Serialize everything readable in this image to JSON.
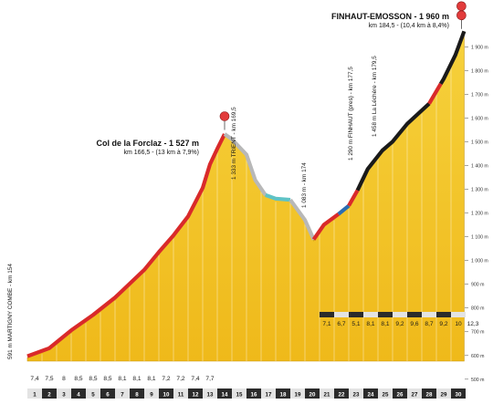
{
  "chart_data": {
    "type": "area",
    "profile": [
      [
        0,
        591
      ],
      [
        1.5,
        625
      ],
      [
        3,
        700
      ],
      [
        4.5,
        765
      ],
      [
        6,
        838
      ],
      [
        8,
        955
      ],
      [
        9,
        1030
      ],
      [
        10,
        1100
      ],
      [
        11,
        1180
      ],
      [
        12,
        1300
      ],
      [
        12.5,
        1400
      ],
      [
        13,
        1465
      ],
      [
        13.5,
        1527
      ],
      [
        14,
        1505
      ],
      [
        15,
        1440
      ],
      [
        15.6,
        1333
      ],
      [
        16.3,
        1270
      ],
      [
        17,
        1255
      ],
      [
        18,
        1250
      ],
      [
        19,
        1165
      ],
      [
        19.6,
        1083
      ],
      [
        20.3,
        1145
      ],
      [
        21.3,
        1190
      ],
      [
        22,
        1225
      ],
      [
        22.6,
        1290
      ],
      [
        23.3,
        1380
      ],
      [
        24.3,
        1458
      ],
      [
        25,
        1495
      ],
      [
        26,
        1570
      ],
      [
        27.5,
        1655
      ],
      [
        28.5,
        1760
      ],
      [
        29.3,
        1860
      ],
      [
        29.9,
        1960
      ]
    ],
    "road_segments": [
      {
        "from": 0,
        "to": 13.5,
        "color": "#d92a2a"
      },
      {
        "from": 13.5,
        "to": 16.3,
        "color": "#b8b8b8"
      },
      {
        "from": 16.3,
        "to": 18,
        "color": "#5fc3c6"
      },
      {
        "from": 18,
        "to": 19.6,
        "color": "#b8b8b8"
      },
      {
        "from": 19.6,
        "to": 21.3,
        "color": "#d92a2a"
      },
      {
        "from": 21.3,
        "to": 22,
        "color": "#2a6db3"
      },
      {
        "from": 22,
        "to": 22.6,
        "color": "#d92a2a"
      },
      {
        "from": 22.6,
        "to": 27.5,
        "color": "#1a1a1a"
      },
      {
        "from": 27.5,
        "to": 28.3,
        "color": "#d92a2a"
      },
      {
        "from": 28.3,
        "to": 29.9,
        "color": "#1a1a1a"
      }
    ],
    "y_ticks": [
      "500 m",
      "600 m",
      "700 m",
      "800 m",
      "900 m",
      "1 000 m",
      "1 100 m",
      "1 200 m",
      "1 300 m",
      "1 400 m",
      "1 500 m",
      "1 600 m",
      "1 700 m",
      "1 800 m",
      "1 900 m"
    ],
    "y_tick_values": [
      500,
      600,
      700,
      800,
      900,
      1000,
      1100,
      1200,
      1300,
      1400,
      1500,
      1600,
      1700,
      1800,
      1900
    ],
    "km_labels": [
      "1",
      "2",
      "3",
      "4",
      "5",
      "6",
      "7",
      "8",
      "9",
      "10",
      "11",
      "12",
      "13",
      "14",
      "15",
      "16",
      "17",
      "18",
      "19",
      "20",
      "21",
      "22",
      "23",
      "24",
      "25",
      "26",
      "27",
      "28",
      "29",
      "30"
    ],
    "gradients_first": [
      "7,4",
      "7,5",
      "8",
      "8,5",
      "8,5",
      "8,5",
      "8,1",
      "8,1",
      "8,1",
      "7,2",
      "7,2",
      "7,4",
      "7,7"
    ],
    "gradients_last": [
      "7,1",
      "6,7",
      "5,1",
      "8,1",
      "8,1",
      "9,2",
      "9,6",
      "8,7",
      "9,2",
      "10",
      "12,3"
    ],
    "gradients_last_start_km": 20,
    "ylim": [
      480,
      1990
    ],
    "xlim": [
      0,
      30
    ]
  },
  "annotations": {
    "start": "591 m MARTIGNY COMBE - km 154",
    "forclaz_title": "Col de la Forclaz - 1 527 m",
    "forclaz_sub": "km 166,5 - (13 km à 7,9%)",
    "trient": "1 333 m TRIENT - km 169,5",
    "low": "1 083 m - km 174",
    "finhaut": "1 290 m FINHAUT (pres) - km 177,5",
    "lachaire": "1 458 m La Léchère - km 179,5",
    "finish_title": "FINHAUT-EMOSSON - 1 960 m",
    "finish_sub": "km 184,5 - (10,4 km à 8,4%)"
  },
  "colors": {
    "terrain": "#f2c21b",
    "terrain_dark": "#d9a70e",
    "marker": "#e23b3b"
  }
}
